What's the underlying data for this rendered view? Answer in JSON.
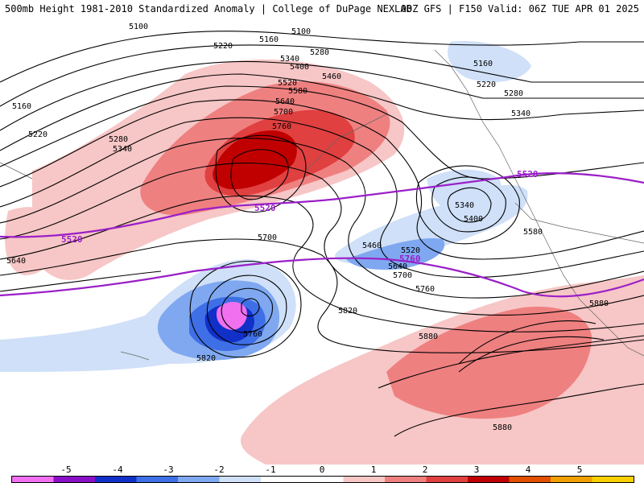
{
  "header": {
    "title_left": "500mb Height 1981-2010 Standardized Anomaly | College of DuPage NEXLAB",
    "title_right": "00Z GFS | F150 Valid: 06Z TUE APR 01 2025"
  },
  "map": {
    "contour_labels": [
      "5100",
      "5100",
      "5160",
      "5160",
      "5160",
      "5220",
      "5220",
      "5220",
      "5280",
      "5280",
      "5280",
      "5340",
      "5340",
      "5340",
      "5340",
      "5400",
      "5400",
      "5460",
      "5460",
      "5520",
      "5520",
      "5580",
      "5580",
      "5640",
      "5640",
      "5640",
      "5700",
      "5700",
      "5700",
      "5760",
      "5760",
      "5760",
      "5820",
      "5820",
      "5880",
      "5880",
      "5880"
    ],
    "highlight_labels": [
      "5520",
      "5520",
      "5520",
      "5760"
    ],
    "colors": {
      "anomaly_pos_1": "#f7c6c6",
      "anomaly_pos_2": "#ef8080",
      "anomaly_pos_3": "#e04040",
      "anomaly_pos_4": "#c00000",
      "anomaly_neg_1": "#cfe0f8",
      "anomaly_neg_2": "#7fa8f0",
      "anomaly_neg_3": "#3f6fe6",
      "anomaly_neg_4": "#1030c8",
      "anomaly_neg_5": "#f070f0",
      "highlight_contour": "#9a1fc8",
      "height_contour": "#000000"
    }
  },
  "colorbar": {
    "labels": [
      "-5",
      "-4",
      "-3",
      "-2",
      "-1",
      "0",
      "1",
      "2",
      "3",
      "4",
      "5"
    ],
    "colors": [
      "#f070f0",
      "#8a10c8",
      "#1030c8",
      "#3f6fe6",
      "#7fa8f0",
      "#cfe0f8",
      "#ffffff",
      "#ffffff",
      "#f7c6c6",
      "#ef8080",
      "#e04040",
      "#c00000",
      "#e05000",
      "#f0a000",
      "#f8d000"
    ]
  }
}
